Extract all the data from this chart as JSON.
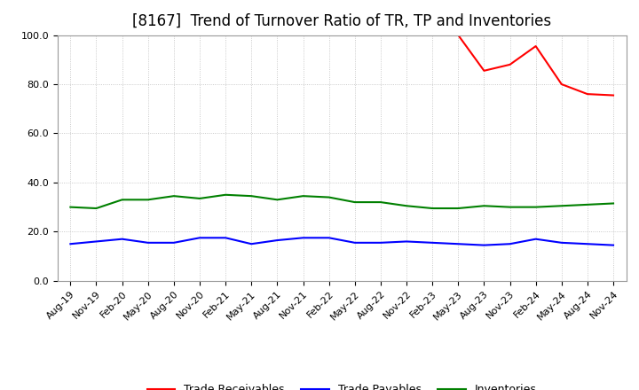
{
  "title": "[8167]  Trend of Turnover Ratio of TR, TP and Inventories",
  "ylim": [
    0,
    100
  ],
  "yticks": [
    0.0,
    20.0,
    40.0,
    60.0,
    80.0,
    100.0
  ],
  "x_labels": [
    "Aug-19",
    "Nov-19",
    "Feb-20",
    "May-20",
    "Aug-20",
    "Nov-20",
    "Feb-21",
    "May-21",
    "Aug-21",
    "Nov-21",
    "Feb-22",
    "May-22",
    "Aug-22",
    "Nov-22",
    "Feb-23",
    "May-23",
    "Aug-23",
    "Nov-23",
    "Feb-24",
    "May-24",
    "Aug-24",
    "Nov-24"
  ],
  "trade_receivables": [
    null,
    null,
    null,
    null,
    null,
    null,
    null,
    null,
    null,
    null,
    null,
    null,
    null,
    null,
    null,
    100.0,
    85.5,
    88.0,
    95.5,
    80.0,
    76.0,
    75.5
  ],
  "trade_payables": [
    15.0,
    16.0,
    17.0,
    15.5,
    15.5,
    17.5,
    17.5,
    15.0,
    16.5,
    17.5,
    17.5,
    15.5,
    15.5,
    16.0,
    15.5,
    15.0,
    14.5,
    15.0,
    17.0,
    15.5,
    15.0,
    14.5
  ],
  "inventories": [
    30.0,
    29.5,
    33.0,
    33.0,
    34.5,
    33.5,
    35.0,
    34.5,
    33.0,
    34.5,
    34.0,
    32.0,
    32.0,
    30.5,
    29.5,
    29.5,
    30.5,
    30.0,
    30.0,
    30.5,
    31.0,
    31.5
  ],
  "color_tr": "#ff0000",
  "color_tp": "#0000ff",
  "color_inv": "#008000",
  "background_color": "#ffffff",
  "grid_color": "#aaaaaa",
  "title_fontsize": 12,
  "legend_fontsize": 9,
  "axis_fontsize": 8,
  "linewidth": 1.5
}
